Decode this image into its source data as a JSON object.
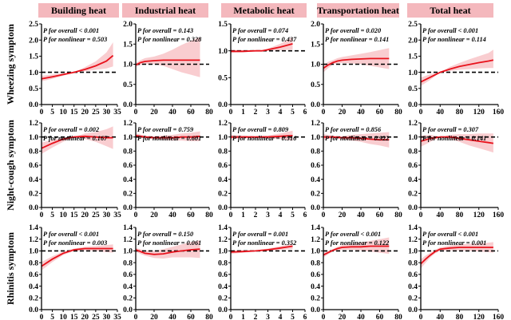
{
  "colors": {
    "header_bg": "#f4b8bd",
    "curve": "#e8121c",
    "band": "#f9cdd0",
    "ref_line": "#000000",
    "axis": "#000000"
  },
  "columns": [
    "Building heat",
    "Industrial heat",
    "Metabolic heat",
    "Transportation heat",
    "Total heat"
  ],
  "rows": [
    "Wheezing symptom",
    "Night-cough symptom",
    "Rhinitis symptom"
  ],
  "chart_data": [
    {
      "type": "line",
      "row": "Wheezing symptom",
      "column": "Building heat",
      "xlim": [
        0,
        35
      ],
      "ylim": [
        0,
        2.5
      ],
      "xticks": [
        0,
        5,
        10,
        15,
        20,
        25,
        30,
        35
      ],
      "yticks": [
        "0.0",
        "0.5",
        "1.0",
        "1.5",
        "2.0",
        "2.5"
      ],
      "reference_y": 1.0,
      "p_overall": "P for overall < 0.001",
      "p_nonlinear": "P for nonlinear = 0.503",
      "x": [
        0,
        5,
        10,
        15,
        20,
        25,
        30,
        33
      ],
      "y": [
        0.8,
        0.86,
        0.93,
        1.0,
        1.09,
        1.2,
        1.35,
        1.52
      ],
      "ci_low": [
        0.72,
        0.8,
        0.89,
        1.0,
        1.03,
        1.08,
        1.12,
        1.18
      ],
      "ci_high": [
        0.89,
        0.93,
        0.97,
        1.0,
        1.16,
        1.34,
        1.62,
        1.93
      ]
    },
    {
      "type": "line",
      "row": "Wheezing symptom",
      "column": "Industrial heat",
      "xlim": [
        0,
        80
      ],
      "ylim": [
        0,
        2.0
      ],
      "xticks": [
        0,
        20,
        40,
        60,
        80
      ],
      "yticks": [
        "0.0",
        "0.5",
        "1.0",
        "1.5",
        "2.0"
      ],
      "reference_y": 1.0,
      "p_overall": "P for overall = 0.143",
      "p_nonlinear": "P for nonlinear = 0.328",
      "x": [
        0,
        5,
        10,
        20,
        30,
        40,
        50,
        60,
        70
      ],
      "y": [
        0.98,
        1.04,
        1.07,
        1.09,
        1.1,
        1.1,
        1.1,
        1.1,
        1.1
      ],
      "ci_low": [
        0.93,
        0.98,
        1.0,
        1.0,
        0.96,
        0.88,
        0.8,
        0.74,
        0.68
      ],
      "ci_high": [
        1.03,
        1.1,
        1.15,
        1.19,
        1.26,
        1.36,
        1.48,
        1.58,
        1.68
      ]
    },
    {
      "type": "line",
      "row": "Wheezing symptom",
      "column": "Metabolic heat",
      "xlim": [
        0,
        6
      ],
      "ylim": [
        0,
        1.5
      ],
      "xticks": [
        0,
        1,
        2,
        3,
        4,
        5,
        6
      ],
      "yticks": [
        "0.0",
        "0.5",
        "1.0",
        "1.5"
      ],
      "reference_y": 1.0,
      "p_overall": "P for overall = 0.074",
      "p_nonlinear": "P for nonlinear = 0.437",
      "x": [
        0,
        1,
        2,
        2.5,
        3,
        4,
        5
      ],
      "y": [
        0.99,
        0.99,
        1.0,
        1.0,
        1.02,
        1.07,
        1.13
      ],
      "ci_low": [
        0.96,
        0.97,
        0.99,
        1.0,
        1.0,
        1.01,
        1.02
      ],
      "ci_high": [
        1.02,
        1.01,
        1.01,
        1.0,
        1.04,
        1.13,
        1.25
      ]
    },
    {
      "type": "line",
      "row": "Wheezing symptom",
      "column": "Transportation heat",
      "xlim": [
        0,
        80
      ],
      "ylim": [
        0,
        2.0
      ],
      "xticks": [
        0,
        20,
        40,
        60,
        80
      ],
      "yticks": [
        "0.0",
        "0.5",
        "1.0",
        "1.5",
        "2.0"
      ],
      "reference_y": 1.0,
      "p_overall": "P for overall = 0.020",
      "p_nonlinear": "P for nonlinear = 0.141",
      "x": [
        0,
        5,
        10,
        15,
        20,
        30,
        40,
        50,
        60,
        70
      ],
      "y": [
        0.9,
        0.98,
        1.04,
        1.08,
        1.1,
        1.12,
        1.13,
        1.14,
        1.14,
        1.14
      ],
      "ci_low": [
        0.8,
        0.9,
        0.99,
        1.02,
        1.03,
        1.02,
        1.0,
        0.96,
        0.92,
        0.88
      ],
      "ci_high": [
        0.98,
        1.06,
        1.1,
        1.15,
        1.18,
        1.22,
        1.26,
        1.3,
        1.35,
        1.4
      ]
    },
    {
      "type": "line",
      "row": "Wheezing symptom",
      "column": "Total heat",
      "xlim": [
        0,
        160
      ],
      "ylim": [
        0,
        2.5
      ],
      "xticks": [
        0,
        40,
        80,
        120,
        160
      ],
      "yticks": [
        "0.0",
        "0.5",
        "1.0",
        "1.5",
        "2.0",
        "2.5"
      ],
      "reference_y": 1.0,
      "p_overall": "P for overall < 0.001",
      "p_nonlinear": "P for nonlinear = 0.114",
      "x": [
        0,
        20,
        40,
        60,
        80,
        100,
        120,
        140,
        150
      ],
      "y": [
        0.7,
        0.85,
        1.0,
        1.1,
        1.18,
        1.24,
        1.3,
        1.35,
        1.38
      ],
      "ci_low": [
        0.58,
        0.77,
        1.0,
        1.04,
        1.08,
        1.1,
        1.12,
        1.13,
        1.13
      ],
      "ci_high": [
        0.84,
        0.94,
        1.0,
        1.17,
        1.29,
        1.4,
        1.5,
        1.6,
        1.7
      ]
    },
    {
      "type": "line",
      "row": "Night-cough symptom",
      "column": "Building heat",
      "xlim": [
        0,
        35
      ],
      "ylim": [
        0,
        1.2
      ],
      "xticks": [
        0,
        5,
        10,
        15,
        20,
        25,
        30,
        35
      ],
      "yticks": [
        "0.0",
        "0.2",
        "0.4",
        "0.6",
        "0.8",
        "1.0",
        "1.2"
      ],
      "reference_y": 1.0,
      "p_overall": "P for overall = 0.002",
      "p_nonlinear": "P for nonlinear = 0.167",
      "x": [
        0,
        5,
        10,
        15,
        20,
        25,
        30,
        33
      ],
      "y": [
        0.84,
        0.91,
        0.97,
        1.0,
        1.01,
        1.0,
        0.99,
        0.99
      ],
      "ci_low": [
        0.76,
        0.85,
        0.93,
        1.0,
        0.97,
        0.93,
        0.87,
        0.83
      ],
      "ci_high": [
        0.92,
        0.96,
        0.99,
        1.0,
        1.05,
        1.07,
        1.11,
        1.15
      ]
    },
    {
      "type": "line",
      "row": "Night-cough symptom",
      "column": "Industrial heat",
      "xlim": [
        0,
        80
      ],
      "ylim": [
        0,
        1.2
      ],
      "xticks": [
        0,
        20,
        40,
        60,
        80
      ],
      "yticks": [
        "0.0",
        "0.2",
        "0.4",
        "0.6",
        "0.8",
        "1.0",
        "1.2"
      ],
      "reference_y": 1.0,
      "p_overall": "P for overall = 0.759",
      "p_nonlinear": "P for nonlinear = 0.601",
      "x": [
        0,
        10,
        20,
        30,
        40,
        50,
        60,
        70
      ],
      "y": [
        1.02,
        1.0,
        0.99,
        0.99,
        0.99,
        1.0,
        1.0,
        1.01
      ],
      "ci_low": [
        0.99,
        0.98,
        0.97,
        0.96,
        0.95,
        0.95,
        0.94,
        0.94
      ],
      "ci_high": [
        1.05,
        1.02,
        1.01,
        1.02,
        1.03,
        1.05,
        1.06,
        1.08
      ]
    },
    {
      "type": "line",
      "row": "Night-cough symptom",
      "column": "Metabolic heat",
      "xlim": [
        0,
        6
      ],
      "ylim": [
        0,
        1.2
      ],
      "xticks": [
        0,
        1,
        2,
        3,
        4,
        5,
        6
      ],
      "yticks": [
        "0.0",
        "0.2",
        "0.4",
        "0.6",
        "0.8",
        "1.0",
        "1.2"
      ],
      "reference_y": 1.0,
      "p_overall": "P for overall = 0.809",
      "p_nonlinear": "P for nonlinear = 0.516",
      "x": [
        0,
        1,
        2,
        3,
        4,
        5
      ],
      "y": [
        1.0,
        1.0,
        1.0,
        1.0,
        1.01,
        1.02
      ],
      "ci_low": [
        0.97,
        0.98,
        0.99,
        0.98,
        0.97,
        0.95
      ],
      "ci_high": [
        1.03,
        1.02,
        1.01,
        1.02,
        1.05,
        1.09
      ]
    },
    {
      "type": "line",
      "row": "Night-cough symptom",
      "column": "Transportation heat",
      "xlim": [
        0,
        80
      ],
      "ylim": [
        0,
        1.2
      ],
      "xticks": [
        0,
        20,
        40,
        60,
        80
      ],
      "yticks": [
        "0.0",
        "0.2",
        "0.4",
        "0.6",
        "0.8",
        "1.0",
        "1.2"
      ],
      "reference_y": 1.0,
      "p_overall": "P for overall = 0.856",
      "p_nonlinear": "P for nonlinear = 0.922",
      "x": [
        0,
        10,
        20,
        30,
        40,
        50,
        60,
        70
      ],
      "y": [
        1.0,
        1.0,
        0.99,
        0.99,
        0.98,
        0.97,
        0.96,
        0.96
      ],
      "ci_low": [
        0.96,
        0.98,
        0.97,
        0.95,
        0.93,
        0.9,
        0.88,
        0.85
      ],
      "ci_high": [
        1.04,
        1.02,
        1.01,
        1.03,
        1.04,
        1.05,
        1.06,
        1.07
      ]
    },
    {
      "type": "line",
      "row": "Night-cough symptom",
      "column": "Total heat",
      "xlim": [
        0,
        160
      ],
      "ylim": [
        0,
        1.2
      ],
      "xticks": [
        0,
        40,
        80,
        120,
        160
      ],
      "yticks": [
        "0.0",
        "0.2",
        "0.4",
        "0.6",
        "0.8",
        "1.0",
        "1.2"
      ],
      "reference_y": 1.0,
      "p_overall": "P for overall = 0.307",
      "p_nonlinear": "P for nonlinear = 0.141",
      "x": [
        0,
        20,
        40,
        60,
        80,
        100,
        120,
        140,
        150
      ],
      "y": [
        0.94,
        0.98,
        1.0,
        1.0,
        0.98,
        0.96,
        0.94,
        0.92,
        0.91
      ],
      "ci_low": [
        0.86,
        0.93,
        1.0,
        0.97,
        0.93,
        0.88,
        0.84,
        0.8,
        0.78
      ],
      "ci_high": [
        1.02,
        1.03,
        1.0,
        1.03,
        1.04,
        1.04,
        1.05,
        1.05,
        1.05
      ]
    },
    {
      "type": "line",
      "row": "Rhinitis symptom",
      "column": "Building heat",
      "xlim": [
        0,
        35
      ],
      "ylim": [
        0,
        1.4
      ],
      "xticks": [
        0,
        5,
        10,
        15,
        20,
        25,
        30,
        35
      ],
      "yticks": [
        "0.0",
        "0.2",
        "0.4",
        "0.6",
        "0.8",
        "1.0",
        "1.2",
        "1.4"
      ],
      "reference_y": 1.0,
      "p_overall": "P for overall < 0.001",
      "p_nonlinear": "P for nonlinear = 0.003",
      "x": [
        0,
        5,
        10,
        15,
        20,
        25,
        30,
        33
      ],
      "y": [
        0.74,
        0.86,
        0.96,
        1.02,
        1.04,
        1.04,
        1.04,
        1.04
      ],
      "ci_low": [
        0.67,
        0.81,
        0.93,
        1.0,
        1.01,
        1.0,
        0.98,
        0.97
      ],
      "ci_high": [
        0.81,
        0.91,
        0.99,
        1.04,
        1.07,
        1.08,
        1.1,
        1.11
      ]
    },
    {
      "type": "line",
      "row": "Rhinitis symptom",
      "column": "Industrial heat",
      "xlim": [
        0,
        80
      ],
      "ylim": [
        0,
        1.4
      ],
      "xticks": [
        0,
        20,
        40,
        60,
        80
      ],
      "yticks": [
        "0.0",
        "0.2",
        "0.4",
        "0.6",
        "0.8",
        "1.0",
        "1.2",
        "1.4"
      ],
      "reference_y": 1.0,
      "p_overall": "P for overall = 0.150",
      "p_nonlinear": "P for nonlinear = 0.061",
      "x": [
        0,
        5,
        10,
        20,
        30,
        40,
        50,
        60,
        70
      ],
      "y": [
        1.02,
        0.99,
        0.96,
        0.94,
        0.95,
        0.98,
        1.0,
        1.02,
        1.03
      ],
      "ci_low": [
        0.99,
        0.95,
        0.92,
        0.88,
        0.87,
        0.89,
        0.89,
        0.89,
        0.88
      ],
      "ci_high": [
        1.05,
        1.03,
        1.0,
        1.0,
        1.03,
        1.07,
        1.11,
        1.15,
        1.18
      ]
    },
    {
      "type": "line",
      "row": "Rhinitis symptom",
      "column": "Metabolic heat",
      "xlim": [
        0,
        6
      ],
      "ylim": [
        0,
        1.4
      ],
      "xticks": [
        0,
        1,
        2,
        3,
        4,
        5,
        6
      ],
      "yticks": [
        "0.0",
        "0.2",
        "0.4",
        "0.6",
        "0.8",
        "1.0",
        "1.2",
        "1.4"
      ],
      "reference_y": 1.0,
      "p_overall": "P for overall = 0.001",
      "p_nonlinear": "P for nonlinear = 0.352",
      "x": [
        0,
        1,
        2,
        3,
        4,
        5
      ],
      "y": [
        0.98,
        0.99,
        1.0,
        1.02,
        1.05,
        1.08
      ],
      "ci_low": [
        0.95,
        0.97,
        0.99,
        1.0,
        1.02,
        1.03
      ],
      "ci_high": [
        1.01,
        1.01,
        1.01,
        1.04,
        1.08,
        1.13
      ]
    },
    {
      "type": "line",
      "row": "Rhinitis symptom",
      "column": "Transportation heat",
      "xlim": [
        0,
        80
      ],
      "ylim": [
        0,
        1.4
      ],
      "xticks": [
        0,
        20,
        40,
        60,
        80
      ],
      "yticks": [
        "0.0",
        "0.2",
        "0.4",
        "0.6",
        "0.8",
        "1.0",
        "1.2",
        "1.4"
      ],
      "reference_y": 1.0,
      "p_overall": "P for overall < 0.001",
      "p_nonlinear": "P for nonlinear = 0.122",
      "x": [
        0,
        5,
        10,
        15,
        20,
        30,
        40,
        50,
        60,
        70
      ],
      "y": [
        0.93,
        0.97,
        1.01,
        1.04,
        1.06,
        1.07,
        1.07,
        1.08,
        1.08,
        1.08
      ],
      "ci_low": [
        0.89,
        0.94,
        0.99,
        1.01,
        1.02,
        1.02,
        1.01,
        0.99,
        0.97,
        0.95
      ],
      "ci_high": [
        0.97,
        1.0,
        1.03,
        1.07,
        1.1,
        1.12,
        1.14,
        1.17,
        1.2,
        1.23
      ]
    },
    {
      "type": "line",
      "row": "Rhinitis symptom",
      "column": "Total heat",
      "xlim": [
        0,
        160
      ],
      "ylim": [
        0,
        1.4
      ],
      "xticks": [
        0,
        40,
        80,
        120,
        160
      ],
      "yticks": [
        "0.0",
        "0.2",
        "0.4",
        "0.6",
        "0.8",
        "1.0",
        "1.2",
        "1.4"
      ],
      "reference_y": 1.0,
      "p_overall": "P for overall < 0.001",
      "p_nonlinear": "P for nonlinear = 0.001",
      "x": [
        0,
        10,
        20,
        30,
        40,
        60,
        80,
        100,
        120,
        140,
        150
      ],
      "y": [
        0.78,
        0.86,
        0.93,
        0.99,
        1.03,
        1.05,
        1.06,
        1.06,
        1.06,
        1.06,
        1.06
      ],
      "ci_low": [
        0.7,
        0.8,
        0.89,
        0.96,
        1.0,
        1.01,
        1.01,
        1.0,
        0.99,
        0.98,
        0.97
      ],
      "ci_high": [
        0.86,
        0.92,
        0.97,
        1.02,
        1.06,
        1.09,
        1.11,
        1.12,
        1.13,
        1.14,
        1.15
      ]
    }
  ]
}
